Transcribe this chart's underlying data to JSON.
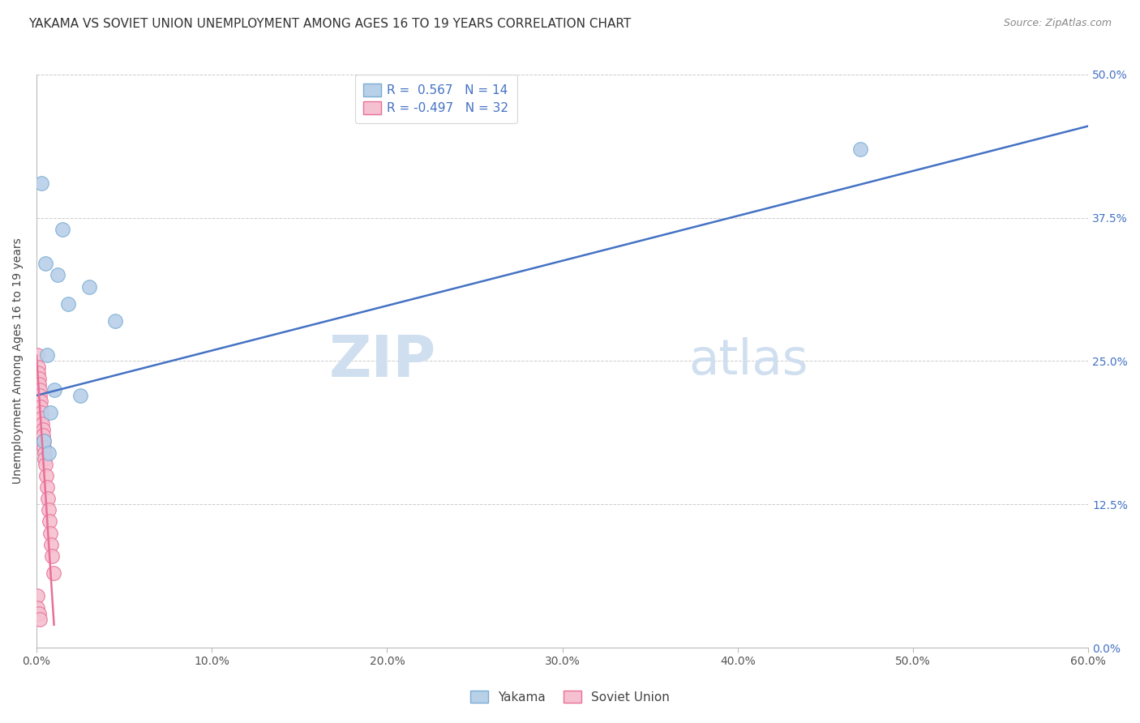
{
  "title": "YAKAMA VS SOVIET UNION UNEMPLOYMENT AMONG AGES 16 TO 19 YEARS CORRELATION CHART",
  "source": "Source: ZipAtlas.com",
  "ylabel": "Unemployment Among Ages 16 to 19 years",
  "xlabel_ticks": [
    "0.0%",
    "10.0%",
    "20.0%",
    "30.0%",
    "40.0%",
    "50.0%",
    "60.0%"
  ],
  "xlabel_vals": [
    0,
    10,
    20,
    30,
    40,
    50,
    60
  ],
  "ylabel_ticks": [
    "0.0%",
    "12.5%",
    "25.0%",
    "37.5%",
    "50.0%"
  ],
  "ylabel_vals": [
    0,
    12.5,
    25,
    37.5,
    50
  ],
  "xlim": [
    0,
    60
  ],
  "ylim": [
    0,
    50
  ],
  "yakama_color": "#b8d0e8",
  "soviet_color": "#f5c0d0",
  "yakama_edge": "#7aadd4",
  "soviet_edge": "#e87098",
  "blue_line_color": "#4472c4",
  "pink_line_color": "#e87098",
  "watermark_zip": "ZIP",
  "watermark_atlas": "atlas",
  "watermark_color": "#d0dff0",
  "legend_R_yakama": "R =  0.567",
  "legend_N_yakama": "N = 14",
  "legend_R_soviet": "R = -0.497",
  "legend_N_soviet": "N = 32",
  "yakama_x": [
    0.3,
    1.5,
    0.5,
    1.2,
    3.0,
    1.8,
    0.6,
    1.0,
    2.5,
    4.5,
    0.8,
    47.0,
    0.4,
    0.7
  ],
  "yakama_y": [
    40.5,
    36.5,
    33.5,
    32.5,
    31.5,
    30.0,
    25.5,
    22.5,
    22.0,
    28.5,
    20.5,
    43.5,
    18.0,
    17.0
  ],
  "soviet_x": [
    0.05,
    0.08,
    0.1,
    0.12,
    0.15,
    0.18,
    0.2,
    0.22,
    0.25,
    0.28,
    0.3,
    0.33,
    0.35,
    0.38,
    0.4,
    0.43,
    0.45,
    0.48,
    0.5,
    0.55,
    0.6,
    0.65,
    0.7,
    0.75,
    0.8,
    0.85,
    0.9,
    0.95,
    0.05,
    0.07,
    0.12,
    0.18
  ],
  "soviet_y": [
    25.5,
    24.5,
    24.0,
    23.5,
    23.0,
    22.5,
    22.0,
    21.5,
    21.0,
    20.5,
    20.0,
    19.5,
    19.0,
    18.5,
    18.0,
    17.5,
    17.0,
    16.5,
    16.0,
    15.0,
    14.0,
    13.0,
    12.0,
    11.0,
    10.0,
    9.0,
    8.0,
    6.5,
    4.5,
    3.5,
    3.0,
    2.5
  ],
  "blue_line_x": [
    0,
    60
  ],
  "blue_line_y": [
    22.0,
    45.5
  ],
  "pink_line_x": [
    0,
    1.0
  ],
  "pink_line_y": [
    25.5,
    2.0
  ],
  "title_fontsize": 11,
  "source_fontsize": 9,
  "label_fontsize": 10,
  "tick_fontsize": 10,
  "legend_fontsize": 11
}
